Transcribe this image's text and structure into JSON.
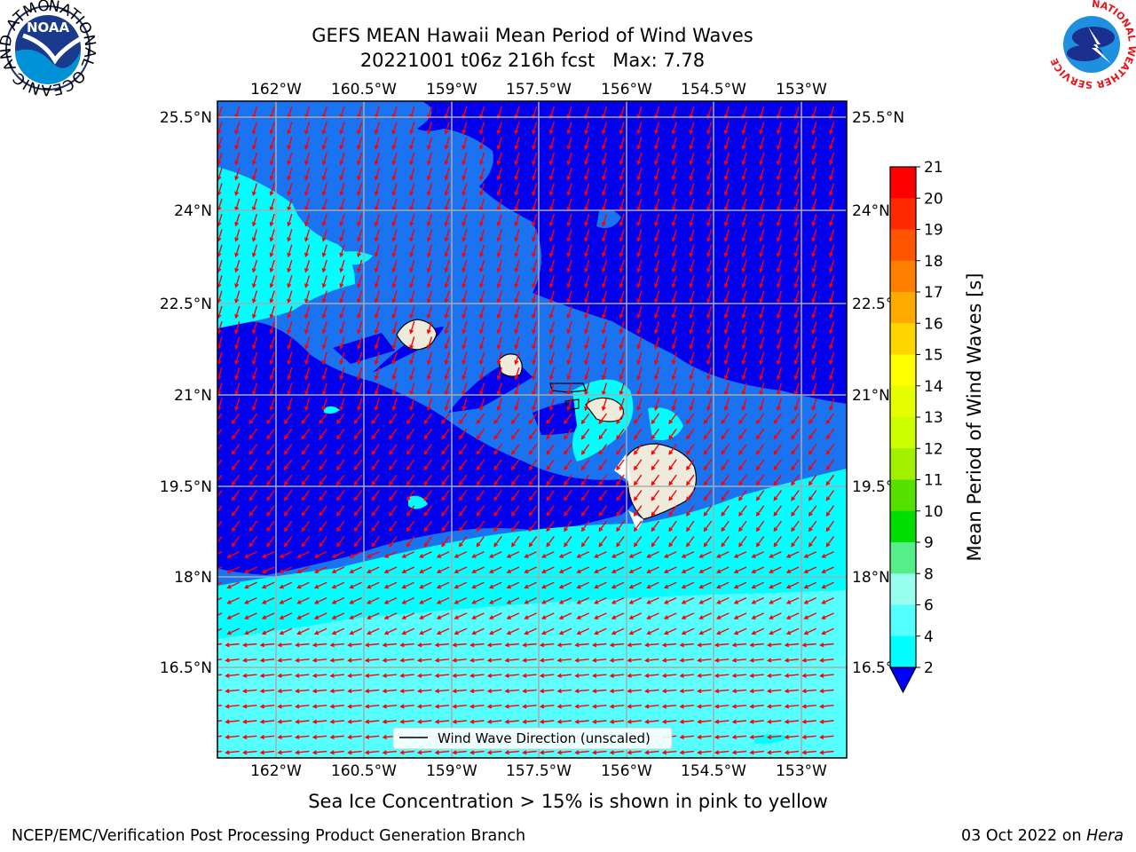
{
  "header": {
    "title_line1": "GEFS MEAN Hawaii Mean Period of Wind Waves",
    "title_line2": "20221001 t06z 216h fcst   Max: 7.78"
  },
  "logos": {
    "noaa_text": "NOAA",
    "noaa_ring_text": "NATIONAL OCEANIC AND ATMOSPHERIC ADMINISTRATION · U.S. DEPARTMENT OF COMMERCE",
    "nws_ring_text": "NATIONAL WEATHER SERVICE"
  },
  "map": {
    "lon_ticks": [
      "162°W",
      "160.5°W",
      "159°W",
      "157.5°W",
      "156°W",
      "154.5°W",
      "153°W"
    ],
    "lat_ticks_left": [
      "25.5°N",
      "24°N",
      "22.5°N",
      "21°N",
      "19.5°N",
      "18°N",
      "16.5°N"
    ],
    "lat_ticks_right": [
      "25.5°N",
      "24°N",
      "22.5°N",
      "21°N",
      "19.5°N",
      "18°N",
      "16.5°N"
    ],
    "legend_label": "Wind Wave Direction (unscaled)",
    "vector_color": "#ff0000",
    "land_color": "#efebdc"
  },
  "colorbar": {
    "title": "Mean Period of Wind Waves [s]",
    "labels": [
      "21",
      "20",
      "19",
      "18",
      "17",
      "16",
      "15",
      "14",
      "13",
      "12",
      "11",
      "10",
      "9",
      "8",
      "6",
      "4",
      "2"
    ],
    "colors": [
      "#ff0000",
      "#ff2a00",
      "#ff5500",
      "#ff8000",
      "#ffaa00",
      "#ffd500",
      "#ffff00",
      "#e6ff00",
      "#ccff00",
      "#a0f000",
      "#55e000",
      "#00dd00",
      "#55ee88",
      "#99ffee",
      "#55ffff",
      "#00ffff",
      "#0080ff"
    ],
    "extend_color": "#0000ff"
  },
  "footer": {
    "subtitle": "Sea Ice Concentration > 15% is shown in pink to yellow",
    "credit": "NCEP/EMC/Verification Post Processing Product Generation Branch",
    "date": "03 Oct 2022 on",
    "machine": "Hera"
  }
}
